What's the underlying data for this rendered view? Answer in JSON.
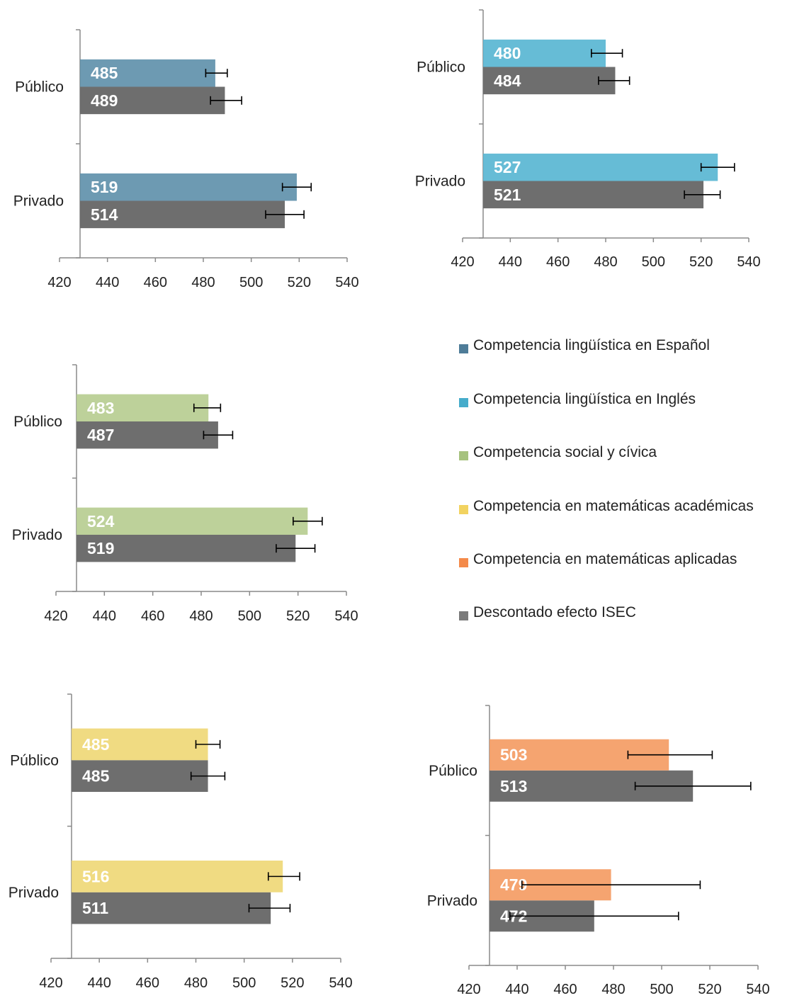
{
  "x_ticks": [
    "420",
    "440",
    "460",
    "480",
    "500",
    "520",
    "540"
  ],
  "colors": {
    "espanol": "#5D8FAA",
    "ingles": "#55B5D1",
    "social": "#B6CC8F",
    "mat_academicas": "#EED774",
    "mat_aplicadas": "#F49A60",
    "isec": "#6E6E6E"
  },
  "legend": [
    {
      "label": "Competencia lingüística en Español",
      "color": "#4E7C98"
    },
    {
      "label": "Competencia lingüística en Inglés",
      "color": "#46ACCB"
    },
    {
      "label": "Competencia social y cívica",
      "color": "#A6C27E"
    },
    {
      "label": "Competencia en matemáticas académicas",
      "color": "#F2D360"
    },
    {
      "label": "Competencia en matemáticas aplicadas",
      "color": "#F48A4A"
    },
    {
      "label": "Descontado efecto ISEC",
      "color": "#7A7A7A"
    }
  ],
  "chart_data": [
    {
      "type": "bar",
      "orientation": "horizontal",
      "categories": [
        "Público",
        "Privado"
      ],
      "xlim": [
        420,
        540
      ],
      "series": [
        {
          "name": "Competencia lingüística en Español",
          "values": [
            485,
            519
          ],
          "error_low": [
            481,
            513
          ],
          "error_high": [
            490,
            525
          ]
        },
        {
          "name": "Descontado efecto ISEC",
          "values": [
            489,
            514
          ],
          "error_low": [
            483,
            506
          ],
          "error_high": [
            496,
            522
          ]
        }
      ]
    },
    {
      "type": "bar",
      "orientation": "horizontal",
      "categories": [
        "Público",
        "Privado"
      ],
      "xlim": [
        420,
        540
      ],
      "series": [
        {
          "name": "Competencia lingüística en Inglés",
          "values": [
            480,
            527
          ],
          "error_low": [
            474,
            520
          ],
          "error_high": [
            487,
            534
          ]
        },
        {
          "name": "Descontado efecto ISEC",
          "values": [
            484,
            521
          ],
          "error_low": [
            477,
            513
          ],
          "error_high": [
            490,
            528
          ]
        }
      ]
    },
    {
      "type": "bar",
      "orientation": "horizontal",
      "categories": [
        "Público",
        "Privado"
      ],
      "xlim": [
        420,
        540
      ],
      "series": [
        {
          "name": "Competencia social y cívica",
          "values": [
            483,
            524
          ],
          "error_low": [
            477,
            518
          ],
          "error_high": [
            488,
            530
          ]
        },
        {
          "name": "Descontado efecto ISEC",
          "values": [
            487,
            519
          ],
          "error_low": [
            481,
            511
          ],
          "error_high": [
            493,
            527
          ]
        }
      ]
    },
    {
      "type": "bar",
      "orientation": "horizontal",
      "categories": [
        "Público",
        "Privado"
      ],
      "xlim": [
        420,
        540
      ],
      "series": [
        {
          "name": "Competencia en matemáticas académicas",
          "values": [
            485,
            516
          ],
          "error_low": [
            480,
            510
          ],
          "error_high": [
            490,
            523
          ]
        },
        {
          "name": "Descontado efecto ISEC",
          "values": [
            485,
            511
          ],
          "error_low": [
            478,
            502
          ],
          "error_high": [
            492,
            519
          ]
        }
      ]
    },
    {
      "type": "bar",
      "orientation": "horizontal",
      "categories": [
        "Público",
        "Privado"
      ],
      "xlim": [
        420,
        540
      ],
      "series": [
        {
          "name": "Competencia en matemáticas aplicadas",
          "values": [
            503,
            479
          ],
          "error_low": [
            486,
            442
          ],
          "error_high": [
            521,
            516
          ]
        },
        {
          "name": "Descontado efecto ISEC",
          "values": [
            513,
            472
          ],
          "error_low": [
            489,
            437
          ],
          "error_high": [
            537,
            507
          ]
        }
      ]
    }
  ]
}
